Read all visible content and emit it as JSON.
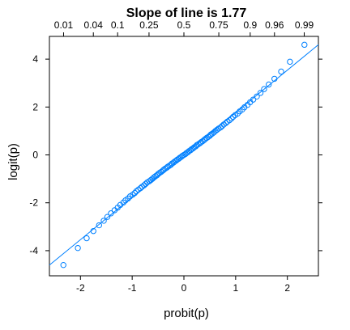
{
  "chart_data": {
    "type": "scatter",
    "title": "Slope of line is 1.77",
    "xlabel": "probit(p)",
    "ylabel": "logit(p)",
    "xlim": [
      -2.6,
      2.6
    ],
    "ylim": [
      -5.05,
      4.95
    ],
    "x_ticks": [
      "-2",
      "-1",
      "0",
      "1",
      "2"
    ],
    "x_tick_values": [
      -2,
      -1,
      0,
      1,
      2
    ],
    "y_ticks": [
      "-4",
      "-2",
      "0",
      "2",
      "4"
    ],
    "y_tick_values": [
      -4,
      -2,
      0,
      2,
      4
    ],
    "top_axis": {
      "labels": [
        "0.01",
        "0.04",
        "0.1",
        "0.25",
        "0.5",
        "0.75",
        "0.9",
        "0.96",
        "0.99"
      ],
      "values": [
        0.01,
        0.04,
        0.1,
        0.25,
        0.5,
        0.75,
        0.9,
        0.96,
        0.99
      ]
    },
    "fit_line": {
      "slope": 1.77,
      "intercept": 0
    },
    "points": {
      "x": [
        -2.33,
        -2.05,
        -1.88,
        -1.75,
        -1.64,
        -1.55,
        -1.48,
        -1.41,
        -1.34,
        -1.28,
        -1.23,
        -1.17,
        -1.13,
        -1.08,
        -1.04,
        -0.99,
        -0.95,
        -0.92,
        -0.88,
        -0.84,
        -0.81,
        -0.77,
        -0.74,
        -0.71,
        -0.67,
        -0.64,
        -0.61,
        -0.58,
        -0.55,
        -0.52,
        -0.5,
        -0.47,
        -0.44,
        -0.41,
        -0.39,
        -0.36,
        -0.33,
        -0.31,
        -0.28,
        -0.25,
        -0.23,
        -0.2,
        -0.18,
        -0.15,
        -0.13,
        -0.1,
        -0.08,
        -0.05,
        -0.03,
        0.0,
        0.03,
        0.05,
        0.08,
        0.1,
        0.13,
        0.15,
        0.18,
        0.2,
        0.23,
        0.25,
        0.28,
        0.31,
        0.33,
        0.36,
        0.39,
        0.41,
        0.44,
        0.47,
        0.5,
        0.52,
        0.55,
        0.58,
        0.61,
        0.64,
        0.67,
        0.71,
        0.74,
        0.77,
        0.81,
        0.84,
        0.88,
        0.92,
        0.95,
        0.99,
        1.04,
        1.08,
        1.13,
        1.17,
        1.23,
        1.28,
        1.34,
        1.41,
        1.48,
        1.55,
        1.64,
        1.75,
        1.88,
        2.05,
        2.33
      ],
      "y": [
        -4.6,
        -3.89,
        -3.48,
        -3.18,
        -2.94,
        -2.75,
        -2.59,
        -2.44,
        -2.31,
        -2.2,
        -2.09,
        -1.99,
        -1.9,
        -1.82,
        -1.73,
        -1.66,
        -1.59,
        -1.52,
        -1.45,
        -1.39,
        -1.33,
        -1.27,
        -1.21,
        -1.15,
        -1.1,
        -1.05,
        -1.0,
        -0.94,
        -0.89,
        -0.85,
        -0.8,
        -0.75,
        -0.71,
        -0.66,
        -0.62,
        -0.57,
        -0.53,
        -0.49,
        -0.45,
        -0.41,
        -0.36,
        -0.32,
        -0.28,
        -0.24,
        -0.2,
        -0.16,
        -0.12,
        -0.08,
        -0.04,
        0.0,
        0.04,
        0.08,
        0.12,
        0.16,
        0.2,
        0.24,
        0.28,
        0.32,
        0.36,
        0.41,
        0.45,
        0.49,
        0.53,
        0.57,
        0.62,
        0.66,
        0.71,
        0.75,
        0.8,
        0.85,
        0.89,
        0.94,
        1.0,
        1.05,
        1.1,
        1.15,
        1.21,
        1.27,
        1.33,
        1.39,
        1.45,
        1.52,
        1.59,
        1.66,
        1.73,
        1.82,
        1.9,
        1.99,
        2.09,
        2.2,
        2.31,
        2.44,
        2.59,
        2.75,
        2.94,
        3.18,
        3.48,
        3.89,
        4.6
      ]
    },
    "grid": false,
    "colors": {
      "points": "#0080ff",
      "line": "#0080ff",
      "axes": "#000000"
    }
  }
}
